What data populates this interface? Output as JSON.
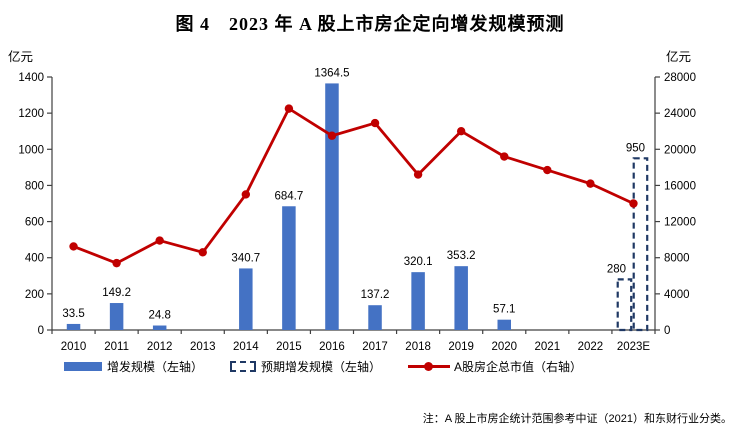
{
  "title": "图 4　2023 年 A 股上市房企定向增发规模预测",
  "note": "注：A 股上市房企统计范围参考中证（2021）和东财行业分类。",
  "legend": [
    {
      "label": "增发规模（左轴）",
      "swatch": "bar",
      "color": "#4472C4"
    },
    {
      "label": "预期增发规模（左轴）",
      "swatch": "dashed-bar",
      "color": "#1F3864"
    },
    {
      "label": "A股房企总市值（右轴）",
      "swatch": "line-marker",
      "color": "#C00000"
    }
  ],
  "chart_data": {
    "type": "bar+line combo",
    "categories": [
      "2010",
      "2011",
      "2012",
      "2013",
      "2014",
      "2015",
      "2016",
      "2017",
      "2018",
      "2019",
      "2020",
      "2021",
      "2022",
      "2023E"
    ],
    "series": [
      {
        "name": "增发规模（左轴）",
        "type": "bar",
        "axis": "left",
        "color": "#4472C4",
        "values": [
          33.5,
          149.2,
          24.8,
          null,
          340.7,
          684.7,
          1364.5,
          137.2,
          320.1,
          353.2,
          57.1,
          null,
          null,
          null
        ],
        "data_labels": true
      },
      {
        "name": "预期增发规模（左轴）",
        "type": "dashed-bar",
        "axis": "left",
        "color": "#1F3864",
        "points": [
          {
            "category": "2023E",
            "value": 280
          },
          {
            "category": "2023E",
            "value": 950
          }
        ],
        "data_labels": true
      },
      {
        "name": "A股房企总市值（右轴）",
        "type": "line",
        "axis": "right",
        "color": "#C00000",
        "values": [
          9250,
          7400,
          9900,
          8600,
          15000,
          24500,
          21500,
          22900,
          17200,
          22000,
          19200,
          17700,
          16200,
          14000
        ]
      }
    ],
    "left_axis": {
      "unit": "亿元",
      "min": 0,
      "max": 1400,
      "step": 200
    },
    "right_axis": {
      "unit": "亿元",
      "min": 0,
      "max": 28000,
      "step": 4000
    },
    "grid": false,
    "legend_position": "bottom",
    "axis_color": "#404040"
  }
}
